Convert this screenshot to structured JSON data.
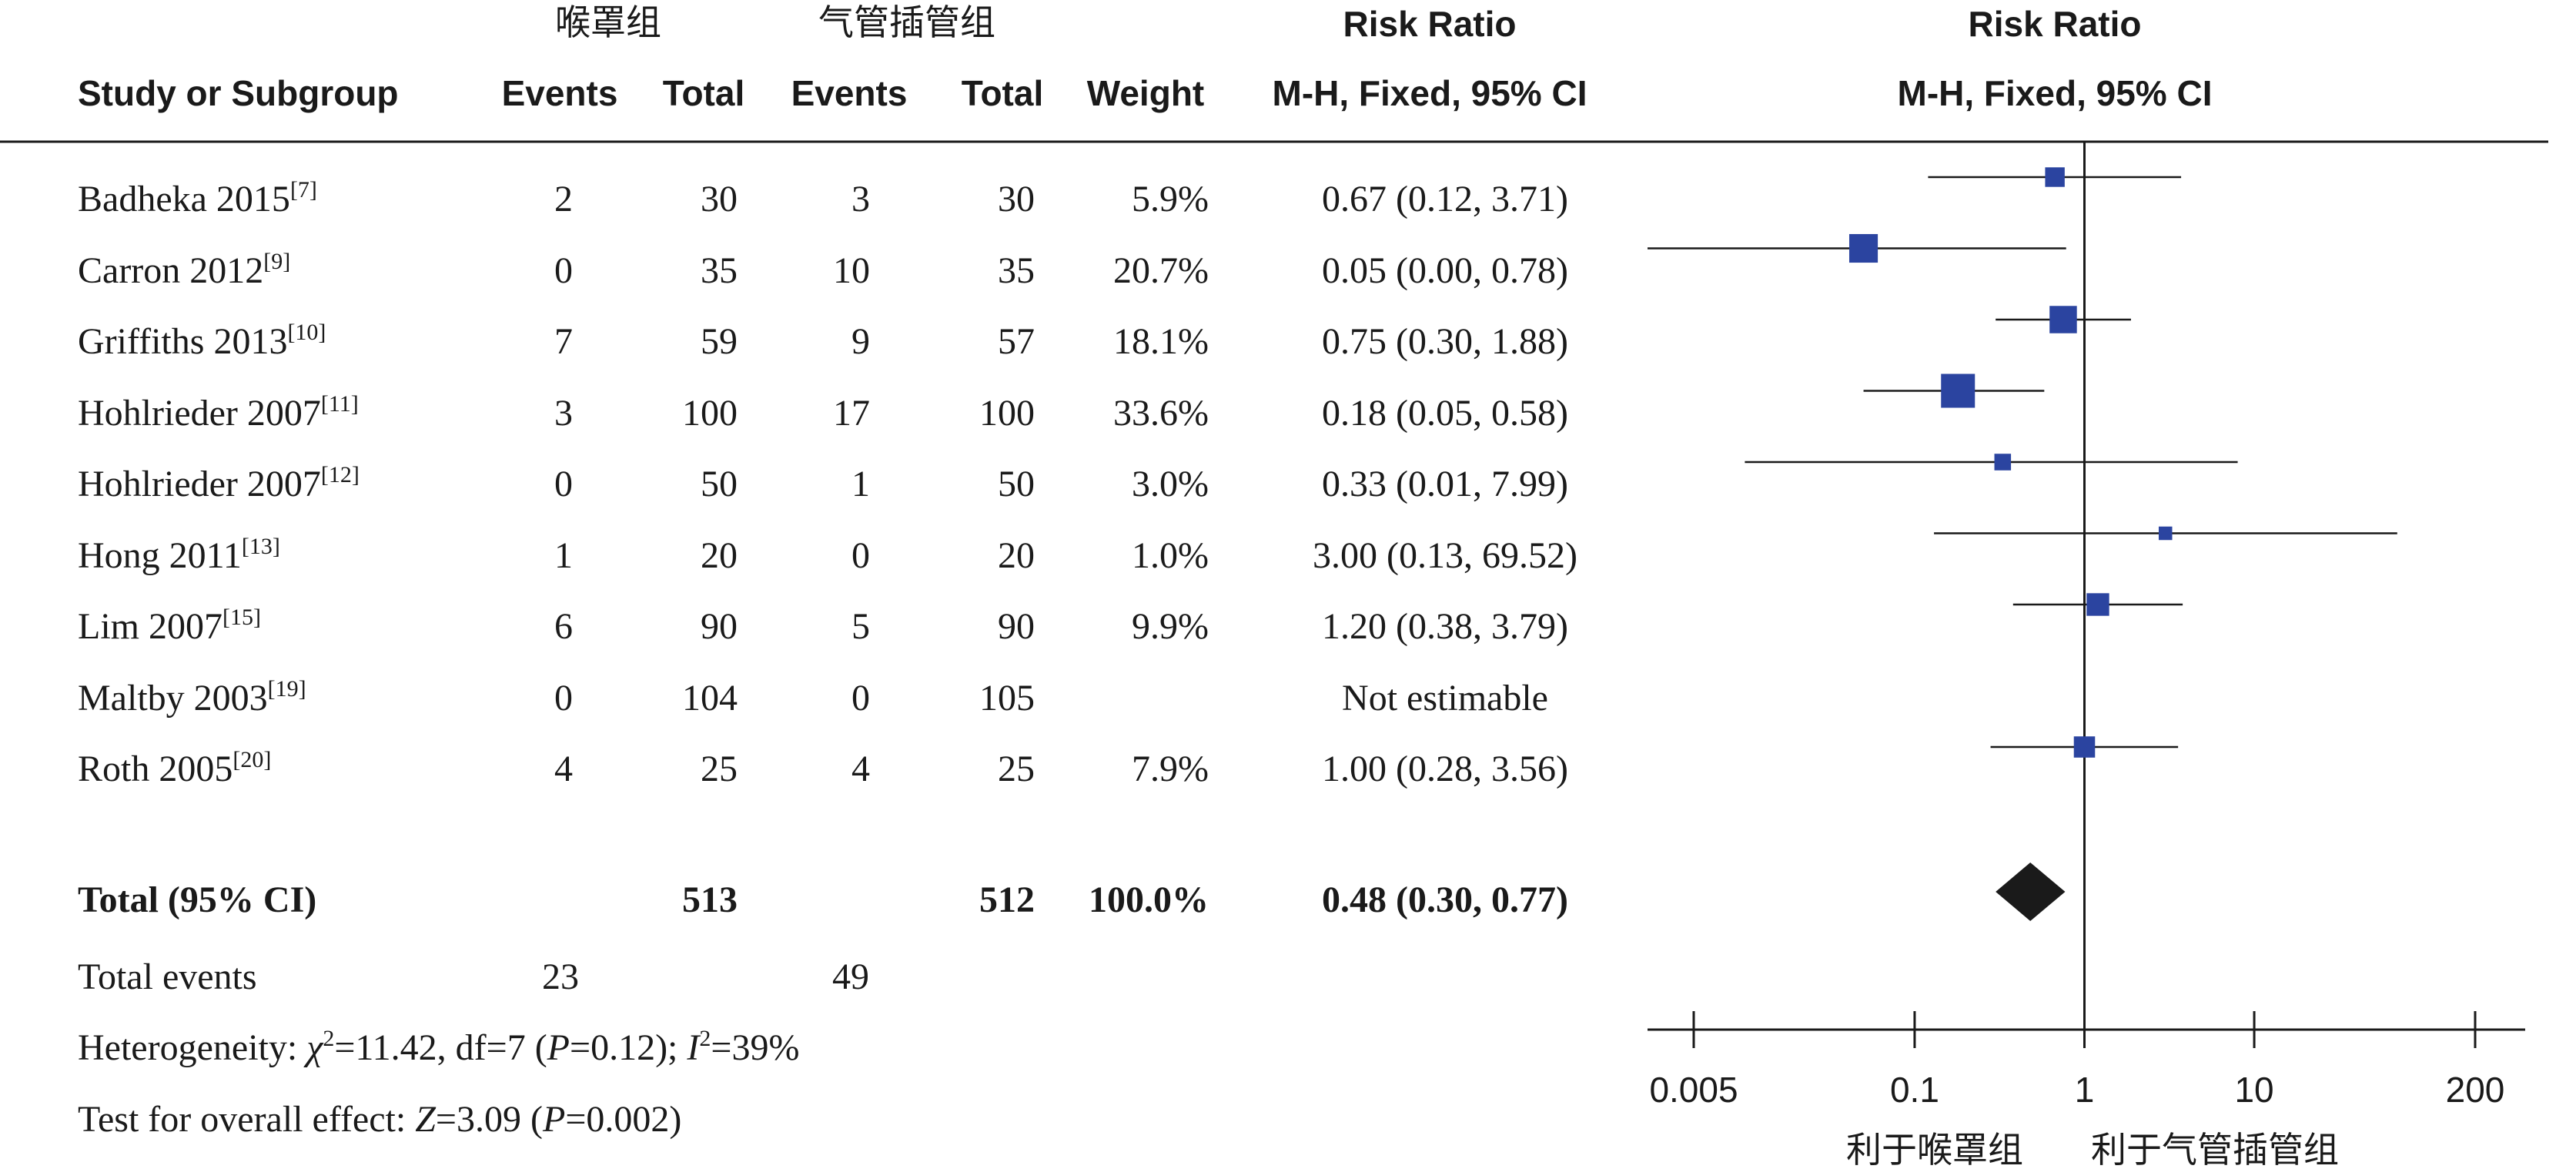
{
  "header": {
    "group1": "喉罩组",
    "group2": "气管插管组",
    "study_col": "Study or Subgroup",
    "events": "Events",
    "total": "Total",
    "weight": "Weight",
    "rr_title": "Risk Ratio",
    "rr_method": "M-H, Fixed, 95% CI",
    "plot_title": "Risk Ratio",
    "plot_method": "M-H, Fixed, 95% CI"
  },
  "rows": [
    {
      "study": "Badheka 2015",
      "ref": "[7]",
      "e1": "2",
      "t1": "30",
      "e2": "3",
      "t2": "30",
      "weight": "5.9%",
      "ci": "0.67 (0.12, 3.71)"
    },
    {
      "study": "Carron 2012",
      "ref": "[9]",
      "e1": "0",
      "t1": "35",
      "e2": "10",
      "t2": "35",
      "weight": "20.7%",
      "ci": "0.05 (0.00, 0.78)"
    },
    {
      "study": "Griffiths 2013",
      "ref": "[10]",
      "e1": "7",
      "t1": "59",
      "e2": "9",
      "t2": "57",
      "weight": "18.1%",
      "ci": "0.75 (0.30, 1.88)"
    },
    {
      "study": "Hohlrieder 2007",
      "ref": "[11]",
      "e1": "3",
      "t1": "100",
      "e2": "17",
      "t2": "100",
      "weight": "33.6%",
      "ci": "0.18 (0.05, 0.58)"
    },
    {
      "study": "Hohlrieder 2007",
      "ref": "[12]",
      "e1": "0",
      "t1": "50",
      "e2": "1",
      "t2": "50",
      "weight": "3.0%",
      "ci": "0.33 (0.01, 7.99)"
    },
    {
      "study": "Hong 2011",
      "ref": "[13]",
      "e1": "1",
      "t1": "20",
      "e2": "0",
      "t2": "20",
      "weight": "1.0%",
      "ci": "3.00 (0.13, 69.52)"
    },
    {
      "study": "Lim 2007",
      "ref": "[15]",
      "e1": "6",
      "t1": "90",
      "e2": "5",
      "t2": "90",
      "weight": "9.9%",
      "ci": "1.20 (0.38, 3.79)"
    },
    {
      "study": "Maltby 2003",
      "ref": "[19]",
      "e1": "0",
      "t1": "104",
      "e2": "0",
      "t2": "105",
      "weight": "",
      "ci": "Not estimable"
    },
    {
      "study": "Roth 2005",
      "ref": "[20]",
      "e1": "4",
      "t1": "25",
      "e2": "4",
      "t2": "25",
      "weight": "7.9%",
      "ci": "1.00 (0.28, 3.56)"
    }
  ],
  "total": {
    "label": "Total (95% CI)",
    "t1": "513",
    "t2": "512",
    "weight": "100.0%",
    "ci": "0.48 (0.30, 0.77)"
  },
  "total_events": {
    "label": "Total events",
    "e1": "23",
    "e2": "49"
  },
  "heterogeneity": {
    "prefix": "Heterogeneity: ",
    "chi_sym": "χ",
    "chi_rest": "=11.42, df=7 (",
    "p_sym": "P",
    "p_rest": "=0.12); ",
    "i_sym": "I",
    "i_rest": "=39%"
  },
  "overall": {
    "prefix": "Test for overall effect: ",
    "z_sym": "Z",
    "z_rest": "=3.09 (",
    "p_sym": "P",
    "p_rest": "=0.002)"
  },
  "axis": {
    "ticks": [
      {
        "value": 0.005,
        "label": "0.005"
      },
      {
        "value": 0.1,
        "label": "0.1"
      },
      {
        "value": 1,
        "label": "1"
      },
      {
        "value": 10,
        "label": "10"
      },
      {
        "value": 200,
        "label": "200"
      }
    ],
    "favours_left": "利于喉罩组",
    "favours_right": "利于气管插管组"
  },
  "chart_data": {
    "type": "scatter",
    "title": "Risk Ratio",
    "subtitle": "M-H, Fixed, 95% CI",
    "scale": "log",
    "xlim": [
      0.005,
      200
    ],
    "null_line": 1,
    "marker_color": "#2b44a0",
    "studies": [
      {
        "name": "Badheka 2015",
        "rr": 0.67,
        "lo": 0.12,
        "hi": 3.71,
        "weight": 5.9
      },
      {
        "name": "Carron 2012",
        "rr": 0.05,
        "lo": 0.0,
        "hi": 0.78,
        "weight": 20.7
      },
      {
        "name": "Griffiths 2013",
        "rr": 0.75,
        "lo": 0.3,
        "hi": 1.88,
        "weight": 18.1
      },
      {
        "name": "Hohlrieder 2007",
        "rr": 0.18,
        "lo": 0.05,
        "hi": 0.58,
        "weight": 33.6
      },
      {
        "name": "Hohlrieder 2007",
        "rr": 0.33,
        "lo": 0.01,
        "hi": 7.99,
        "weight": 3.0
      },
      {
        "name": "Hong 2011",
        "rr": 3.0,
        "lo": 0.13,
        "hi": 69.52,
        "weight": 1.0
      },
      {
        "name": "Lim 2007",
        "rr": 1.2,
        "lo": 0.38,
        "hi": 3.79,
        "weight": 9.9
      },
      {
        "name": "Maltby 2003",
        "rr": null,
        "lo": null,
        "hi": null,
        "weight": null
      },
      {
        "name": "Roth 2005",
        "rr": 1.0,
        "lo": 0.28,
        "hi": 3.56,
        "weight": 7.9
      }
    ],
    "pooled": {
      "rr": 0.48,
      "lo": 0.3,
      "hi": 0.77
    }
  }
}
